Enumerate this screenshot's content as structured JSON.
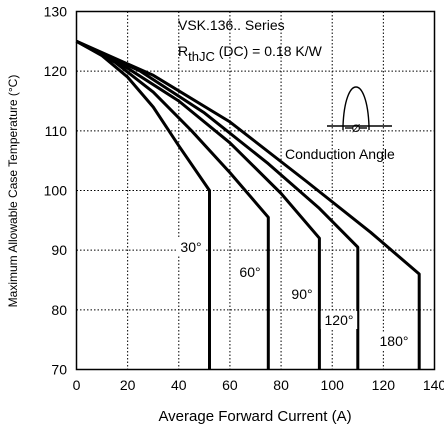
{
  "chart_data": {
    "type": "line",
    "title": "VSK.136.. Series",
    "subtitle": {
      "prefix": "R",
      "sub": "thJC",
      "suffix": " (DC) = 0.18 K/W"
    },
    "xlabel": "Average Forward Current (A)",
    "ylabel": "Maximum Allowable Case Temperature (°C)",
    "xlim": [
      0,
      140
    ],
    "ylim": [
      70,
      130
    ],
    "x_ticks": [
      "0",
      "20",
      "40",
      "60",
      "80",
      "100",
      "120",
      "140"
    ],
    "y_ticks": [
      "70",
      "80",
      "90",
      "100",
      "110",
      "120",
      "130"
    ],
    "grid": true,
    "annotation": "Conduction Angle",
    "waveform_symbol": "Ø",
    "series": [
      {
        "name": "30°",
        "points": [
          [
            0,
            125
          ],
          [
            10,
            122.6
          ],
          [
            20,
            119
          ],
          [
            30,
            114
          ],
          [
            40,
            107.5
          ],
          [
            52,
            100
          ],
          [
            52,
            70
          ]
        ]
      },
      {
        "name": "60°",
        "points": [
          [
            0,
            125
          ],
          [
            15,
            121.5
          ],
          [
            30,
            116.5
          ],
          [
            45,
            110
          ],
          [
            60,
            103
          ],
          [
            75,
            95.5
          ],
          [
            75,
            70
          ]
        ]
      },
      {
        "name": "90°",
        "points": [
          [
            0,
            125
          ],
          [
            20,
            120.5
          ],
          [
            40,
            115
          ],
          [
            60,
            108
          ],
          [
            80,
            99.5
          ],
          [
            95,
            92
          ],
          [
            95,
            70
          ]
        ]
      },
      {
        "name": "120°",
        "points": [
          [
            0,
            125
          ],
          [
            25,
            120
          ],
          [
            50,
            113
          ],
          [
            75,
            104.5
          ],
          [
            95,
            97
          ],
          [
            110,
            90.5
          ],
          [
            110,
            70
          ]
        ]
      },
      {
        "name": "180°",
        "points": [
          [
            0,
            125
          ],
          [
            30,
            119.3
          ],
          [
            60,
            111.5
          ],
          [
            90,
            101.5
          ],
          [
            115,
            93
          ],
          [
            134,
            86
          ],
          [
            134,
            70
          ]
        ]
      }
    ]
  }
}
